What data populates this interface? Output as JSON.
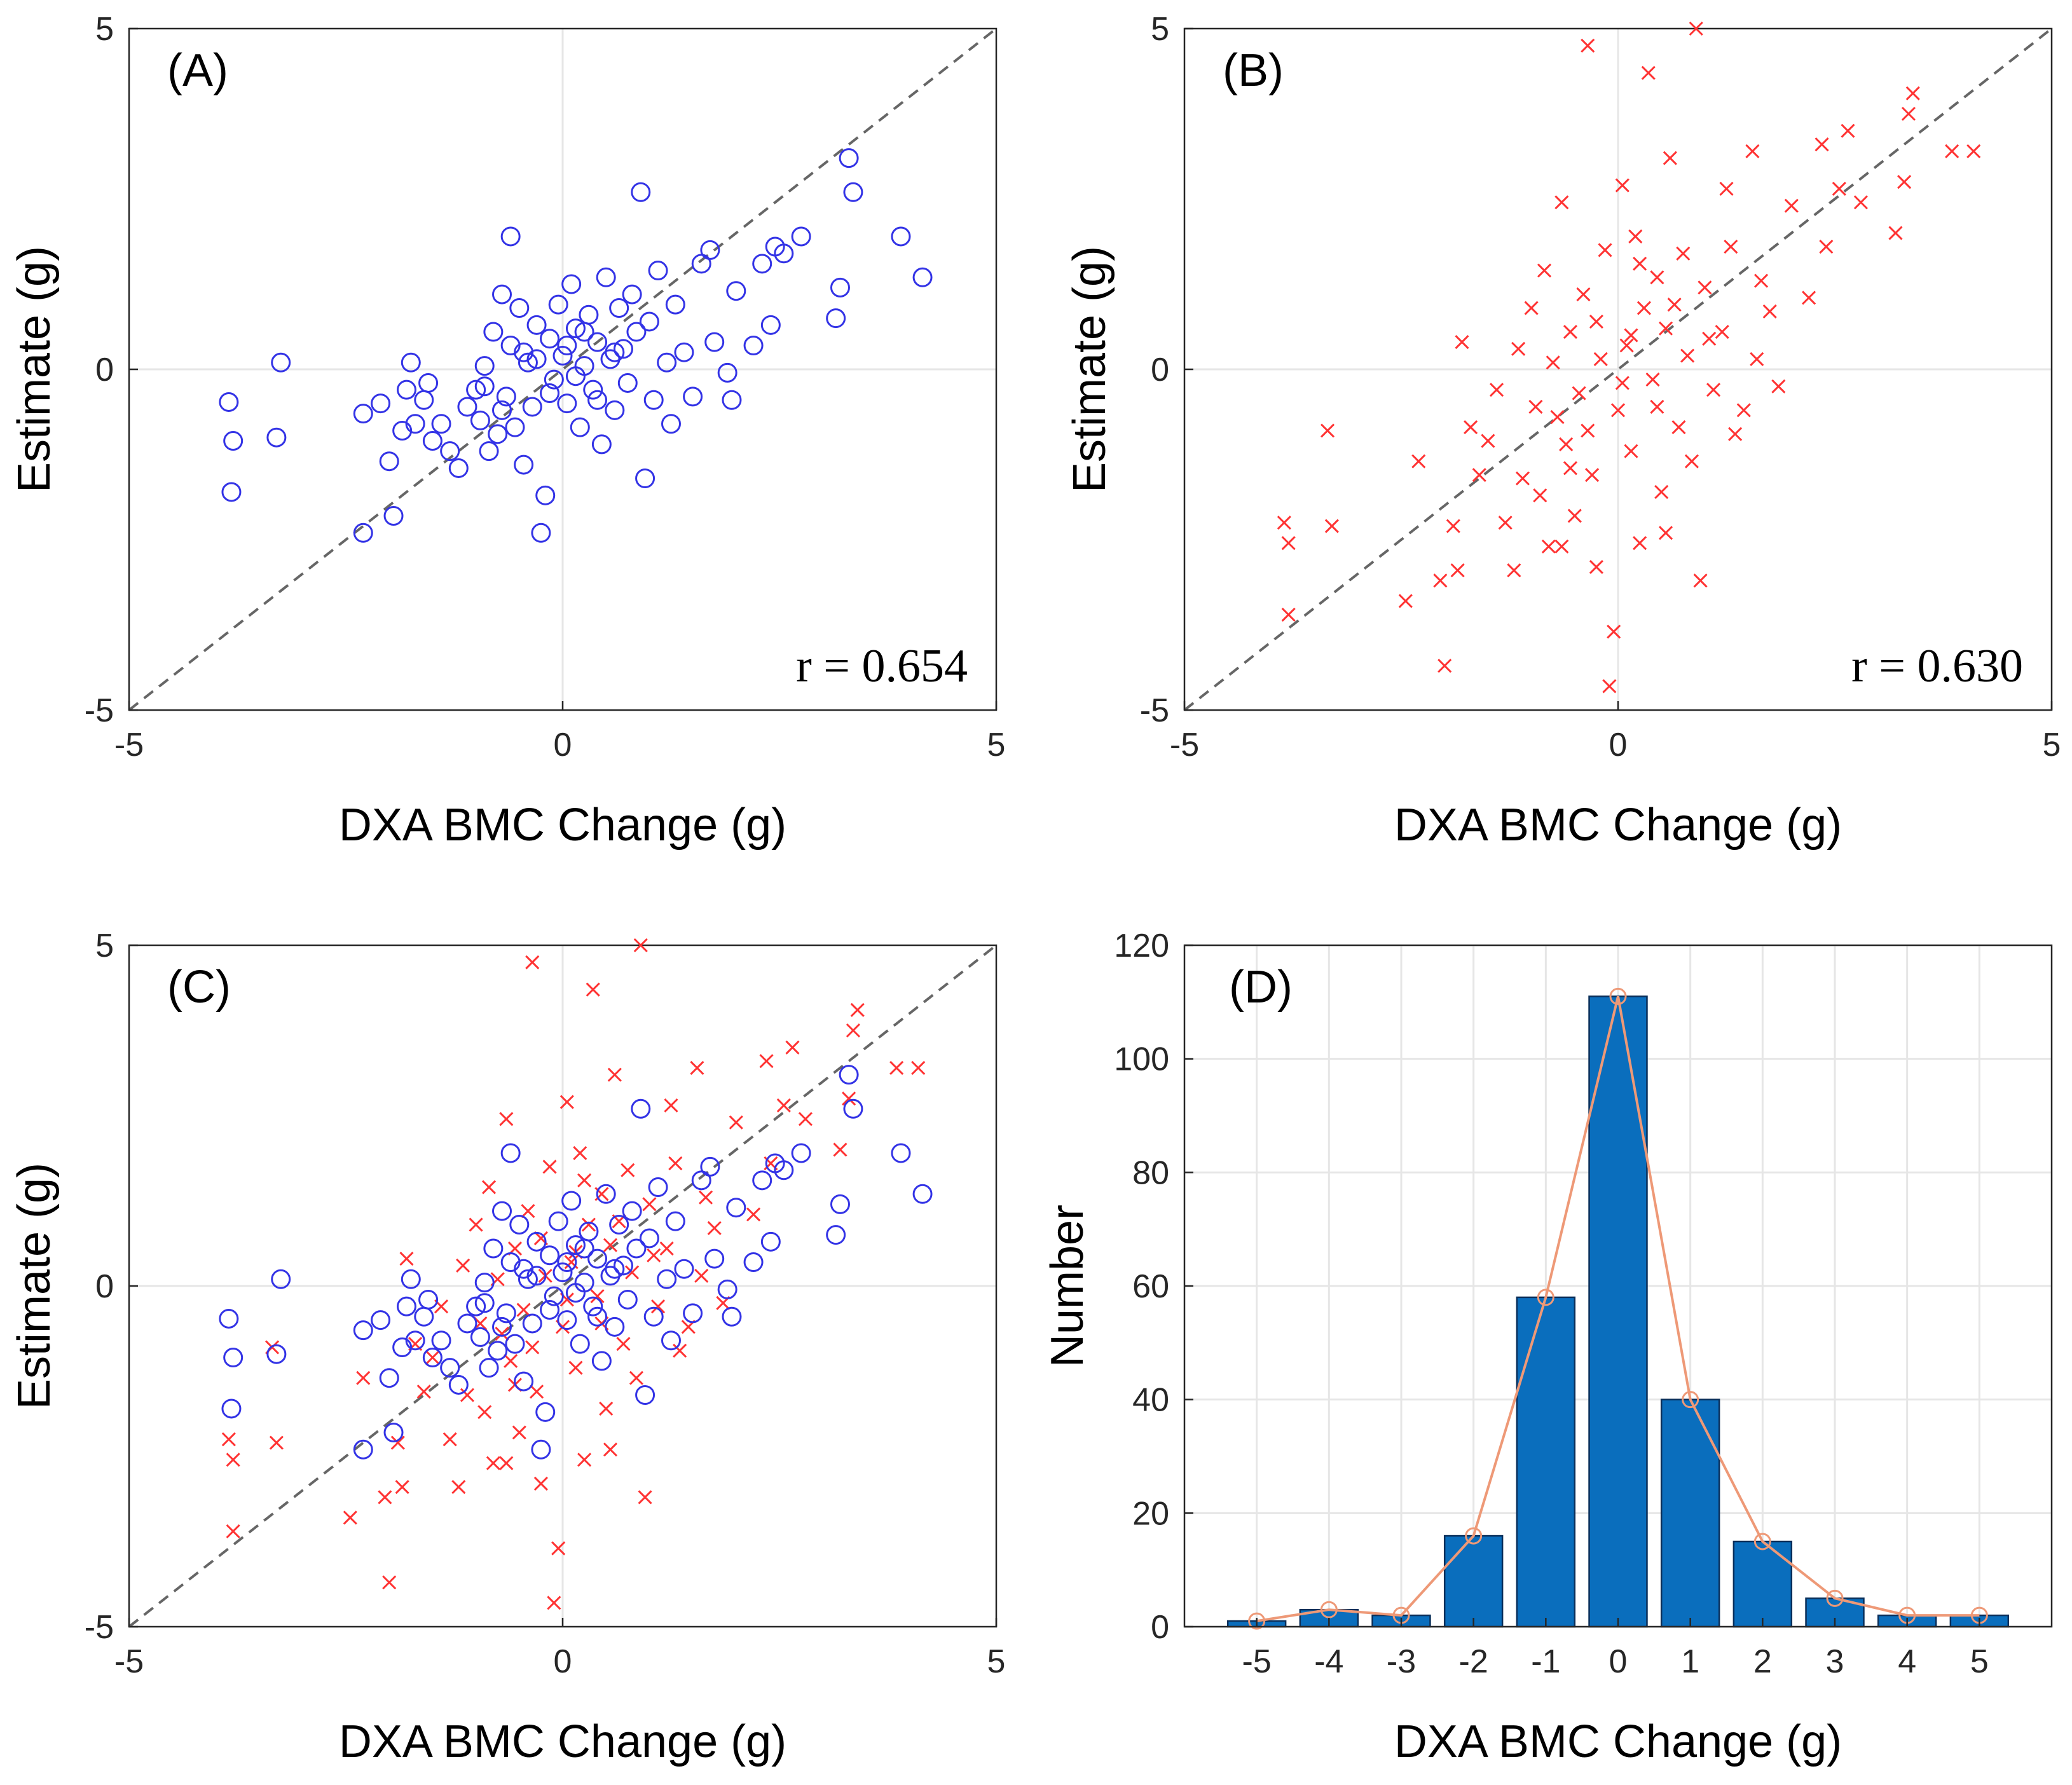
{
  "colors": {
    "circle": "#3333e6",
    "cross": "#ff3333",
    "bar": "#0a6ebd",
    "bar_edge": "#0a2f5a",
    "line": "#ee9977",
    "grid": "#e6e6e6",
    "axis": "#262626",
    "identity": "#666666"
  },
  "chart_data": [
    {
      "panel": "A",
      "type": "scatter",
      "label": "(A)",
      "xlabel": "DXA BMC Change (g)",
      "ylabel": "Estimate (g)",
      "xlim": [
        -5,
        5
      ],
      "ylim": [
        -5,
        5
      ],
      "xticks": [
        "-5",
        "0",
        "5"
      ],
      "yticks": [
        "-5",
        "0",
        "5"
      ],
      "annotation": "r = 0.654",
      "marker": "circle",
      "identity_line": true,
      "points": [
        [
          -3.85,
          -0.48
        ],
        [
          -3.8,
          -1.05
        ],
        [
          -3.82,
          -1.8
        ],
        [
          -3.25,
          0.1
        ],
        [
          -3.3,
          -1.0
        ],
        [
          -2.3,
          -2.4
        ],
        [
          -2.3,
          -0.65
        ],
        [
          -2.1,
          -0.5
        ],
        [
          -2.0,
          -1.35
        ],
        [
          -1.95,
          -2.15
        ],
        [
          -1.85,
          -0.9
        ],
        [
          -1.8,
          -0.3
        ],
        [
          -1.75,
          0.1
        ],
        [
          -1.7,
          -0.8
        ],
        [
          -1.6,
          -0.45
        ],
        [
          -1.55,
          -0.2
        ],
        [
          -1.5,
          -1.05
        ],
        [
          -1.4,
          -0.8
        ],
        [
          -1.3,
          -1.2
        ],
        [
          -1.2,
          -1.45
        ],
        [
          -1.1,
          -0.55
        ],
        [
          -1.0,
          -0.3
        ],
        [
          -0.95,
          -0.75
        ],
        [
          -0.9,
          0.05
        ],
        [
          -0.85,
          -1.2
        ],
        [
          -0.8,
          0.55
        ],
        [
          -0.75,
          -0.95
        ],
        [
          -0.7,
          1.1
        ],
        [
          -0.65,
          -0.4
        ],
        [
          -0.6,
          0.35
        ],
        [
          -0.55,
          -0.85
        ],
        [
          -0.5,
          0.9
        ],
        [
          -0.45,
          -1.4
        ],
        [
          -0.4,
          0.1
        ],
        [
          -0.35,
          -0.55
        ],
        [
          -0.3,
          0.65
        ],
        [
          -0.25,
          -2.4
        ],
        [
          -0.2,
          -1.85
        ],
        [
          -0.15,
          0.45
        ],
        [
          -0.1,
          -0.15
        ],
        [
          -0.05,
          0.95
        ],
        [
          0.0,
          0.2
        ],
        [
          0.05,
          -0.5
        ],
        [
          0.1,
          1.25
        ],
        [
          0.15,
          0.6
        ],
        [
          0.2,
          -0.85
        ],
        [
          0.25,
          0.05
        ],
        [
          0.3,
          0.8
        ],
        [
          0.35,
          -0.3
        ],
        [
          0.4,
          0.4
        ],
        [
          0.45,
          -1.1
        ],
        [
          0.5,
          1.35
        ],
        [
          0.55,
          0.15
        ],
        [
          0.6,
          -0.6
        ],
        [
          0.65,
          0.9
        ],
        [
          0.7,
          0.3
        ],
        [
          0.75,
          -0.2
        ],
        [
          0.8,
          1.1
        ],
        [
          0.85,
          0.55
        ],
        [
          0.9,
          2.6
        ],
        [
          0.95,
          -1.6
        ],
        [
          1.0,
          0.7
        ],
        [
          1.05,
          -0.45
        ],
        [
          1.1,
          1.45
        ],
        [
          1.2,
          0.1
        ],
        [
          1.25,
          -0.8
        ],
        [
          1.3,
          0.95
        ],
        [
          1.4,
          0.25
        ],
        [
          1.5,
          -0.4
        ],
        [
          1.6,
          1.55
        ],
        [
          1.7,
          1.75
        ],
        [
          1.75,
          0.4
        ],
        [
          1.9,
          -0.05
        ],
        [
          1.95,
          -0.45
        ],
        [
          2.0,
          1.15
        ],
        [
          2.2,
          0.35
        ],
        [
          2.3,
          1.55
        ],
        [
          2.4,
          0.65
        ],
        [
          2.45,
          1.8
        ],
        [
          2.55,
          1.7
        ],
        [
          2.75,
          1.95
        ],
        [
          3.15,
          0.75
        ],
        [
          3.2,
          1.2
        ],
        [
          3.3,
          3.1
        ],
        [
          3.35,
          2.6
        ],
        [
          3.9,
          1.95
        ],
        [
          4.15,
          1.35
        ],
        [
          -0.6,
          1.95
        ],
        [
          -0.9,
          -0.25
        ],
        [
          -0.3,
          0.15
        ],
        [
          0.15,
          -0.1
        ],
        [
          -0.45,
          0.25
        ],
        [
          0.4,
          -0.45
        ],
        [
          0.05,
          0.35
        ],
        [
          -0.15,
          -0.35
        ],
        [
          0.25,
          0.55
        ],
        [
          0.6,
          0.25
        ],
        [
          -0.7,
          -0.6
        ]
      ]
    },
    {
      "panel": "B",
      "type": "scatter",
      "label": "(B)",
      "xlabel": "DXA BMC Change (g)",
      "ylabel": "Estimate (g)",
      "xlim": [
        -5,
        5
      ],
      "ylim": [
        -5,
        5
      ],
      "xticks": [
        "-5",
        "0",
        "5"
      ],
      "yticks": [
        "-5",
        "0",
        "5"
      ],
      "annotation": "r = 0.630",
      "marker": "cross",
      "identity_line": true,
      "points": [
        [
          -3.85,
          -2.25
        ],
        [
          -3.8,
          -2.55
        ],
        [
          -3.8,
          -3.6
        ],
        [
          -3.35,
          -0.9
        ],
        [
          -3.3,
          -2.3
        ],
        [
          -2.45,
          -3.4
        ],
        [
          -2.3,
          -1.35
        ],
        [
          -2.05,
          -3.1
        ],
        [
          -2.0,
          -4.35
        ],
        [
          -1.85,
          -2.95
        ],
        [
          -1.8,
          0.4
        ],
        [
          -1.7,
          -0.85
        ],
        [
          -1.6,
          -1.55
        ],
        [
          -1.5,
          -1.05
        ],
        [
          -1.4,
          -0.3
        ],
        [
          -1.3,
          -2.25
        ],
        [
          -1.2,
          -2.95
        ],
        [
          -1.1,
          -1.6
        ],
        [
          -1.0,
          0.9
        ],
        [
          -0.9,
          -1.85
        ],
        [
          -0.85,
          1.45
        ],
        [
          -0.8,
          -2.6
        ],
        [
          -0.7,
          -0.7
        ],
        [
          -0.65,
          2.45
        ],
        [
          -0.6,
          -1.1
        ],
        [
          -0.55,
          0.55
        ],
        [
          -0.5,
          -2.15
        ],
        [
          -0.45,
          -0.35
        ],
        [
          -0.4,
          1.1
        ],
        [
          -0.35,
          4.75
        ],
        [
          -0.3,
          -1.55
        ],
        [
          -0.25,
          -2.9
        ],
        [
          -0.2,
          0.15
        ],
        [
          -0.15,
          1.75
        ],
        [
          -0.1,
          -4.65
        ],
        [
          -0.05,
          -3.85
        ],
        [
          0.0,
          -0.6
        ],
        [
          0.05,
          2.7
        ],
        [
          0.1,
          0.35
        ],
        [
          0.15,
          -1.2
        ],
        [
          0.2,
          1.95
        ],
        [
          0.25,
          -2.55
        ],
        [
          0.3,
          0.9
        ],
        [
          0.35,
          4.35
        ],
        [
          0.4,
          -0.15
        ],
        [
          0.45,
          1.35
        ],
        [
          0.5,
          -1.8
        ],
        [
          0.55,
          0.6
        ],
        [
          0.6,
          3.1
        ],
        [
          0.7,
          -0.85
        ],
        [
          0.75,
          1.7
        ],
        [
          0.8,
          0.2
        ],
        [
          0.9,
          5.0
        ],
        [
          0.95,
          -3.1
        ],
        [
          1.0,
          1.2
        ],
        [
          1.1,
          -0.3
        ],
        [
          1.2,
          0.55
        ],
        [
          1.25,
          2.65
        ],
        [
          1.3,
          1.8
        ],
        [
          1.45,
          -0.6
        ],
        [
          1.55,
          3.2
        ],
        [
          1.65,
          1.3
        ],
        [
          1.75,
          0.85
        ],
        [
          1.85,
          -0.25
        ],
        [
          2.0,
          2.4
        ],
        [
          2.2,
          1.05
        ],
        [
          2.35,
          3.3
        ],
        [
          2.4,
          1.8
        ],
        [
          2.55,
          2.65
        ],
        [
          2.65,
          3.5
        ],
        [
          2.8,
          2.45
        ],
        [
          3.2,
          2.0
        ],
        [
          3.3,
          2.75
        ],
        [
          3.35,
          3.75
        ],
        [
          3.4,
          4.05
        ],
        [
          3.85,
          3.2
        ],
        [
          4.1,
          3.2
        ],
        [
          -1.15,
          0.3
        ],
        [
          -0.95,
          -0.55
        ],
        [
          -0.75,
          0.1
        ],
        [
          -0.55,
          -1.45
        ],
        [
          -0.25,
          0.7
        ],
        [
          0.05,
          -0.2
        ],
        [
          0.25,
          1.55
        ],
        [
          0.45,
          -0.55
        ],
        [
          0.65,
          0.95
        ],
        [
          0.85,
          -1.35
        ],
        [
          1.05,
          0.45
        ],
        [
          1.35,
          -0.95
        ],
        [
          1.6,
          0.15
        ],
        [
          -0.35,
          -0.9
        ],
        [
          0.15,
          0.5
        ],
        [
          -0.65,
          -2.6
        ],
        [
          0.55,
          -2.4
        ],
        [
          -1.9,
          -2.3
        ]
      ]
    },
    {
      "panel": "C",
      "type": "scatter",
      "label": "(C)",
      "xlabel": "DXA BMC Change (g)",
      "ylabel": "Estimate (g)",
      "xlim": [
        -5,
        5
      ],
      "ylim": [
        -5,
        5
      ],
      "xticks": [
        "-5",
        "0",
        "5"
      ],
      "yticks": [
        "-5",
        "0",
        "5"
      ],
      "identity_line": true,
      "overlay": [
        "A",
        "B"
      ]
    },
    {
      "panel": "D",
      "type": "bar",
      "label": "(D)",
      "xlabel": "DXA BMC Change (g)",
      "ylabel": "Number",
      "categories": [
        "-5",
        "-4",
        "-3",
        "-2",
        "-1",
        "0",
        "1",
        "2",
        "3",
        "4",
        "5"
      ],
      "values": [
        1,
        3,
        2,
        16,
        58,
        111,
        40,
        15,
        5,
        2,
        2
      ],
      "ylim": [
        0,
        120
      ],
      "yticks": [
        "0",
        "20",
        "40",
        "60",
        "80",
        "100",
        "120"
      ],
      "overlay_line": true
    }
  ]
}
